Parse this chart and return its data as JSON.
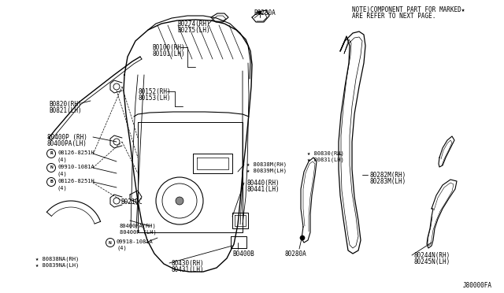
{
  "bg_color": "#ffffff",
  "note_line1": "NOTE)COMPONENT PART FOR MARKED★",
  "note_line2": "ARE REFER TO NEXT PAGE.",
  "footer": "J80000FA",
  "line_color": "#000000",
  "text_color": "#000000"
}
